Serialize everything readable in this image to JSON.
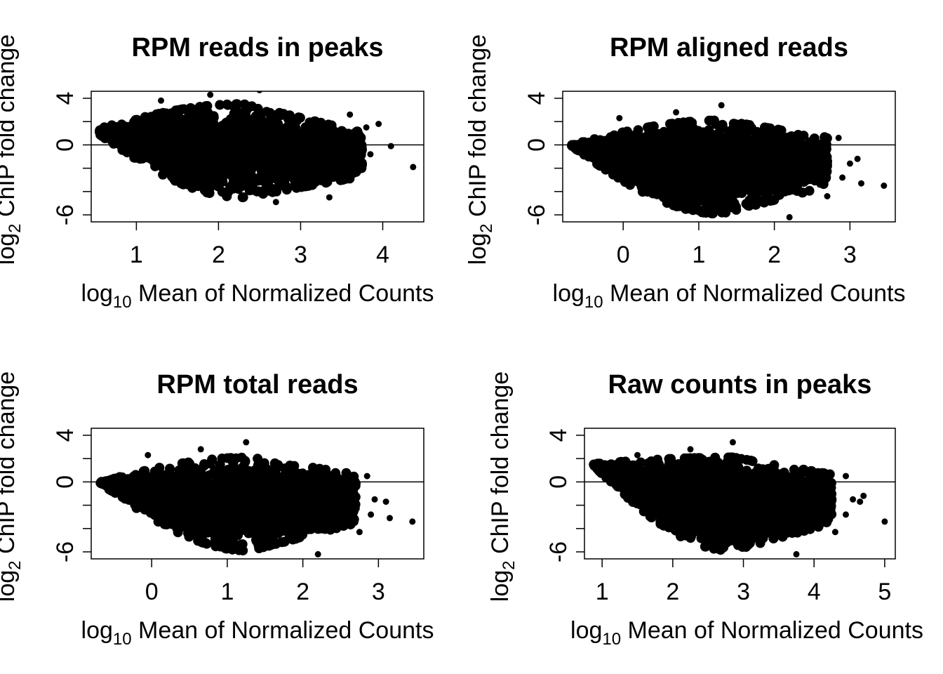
{
  "chart_data": [
    {
      "type": "scatter",
      "title": "RPM reads in peaks",
      "xlabel": {
        "prefix": "log",
        "sub": "10",
        "text": " Mean of Normalized Counts"
      },
      "ylabel": {
        "prefix": "log",
        "sub": "2",
        "text": " ChIP fold change"
      },
      "xlim": [
        0.45,
        4.5
      ],
      "ylim": [
        -6.6,
        4.6
      ],
      "xticks": [
        1,
        2,
        3,
        4
      ],
      "yticks": [
        -6,
        -4,
        -2,
        0,
        2,
        4
      ],
      "ytick_labels": [
        "-6",
        "",
        "",
        "0",
        "",
        "4"
      ],
      "hline": 0,
      "cloud": {
        "x0": 0.55,
        "x1": 3.75,
        "peak_x": 2.3,
        "upper_start": 1.4,
        "lower_start": 0.9,
        "upper_peak": 3.5,
        "lower_peak": -4.5
      },
      "outliers": [
        [
          1.9,
          4.3
        ],
        [
          2.5,
          4.7
        ],
        [
          3.8,
          1.5
        ],
        [
          3.95,
          1.8
        ],
        [
          4.1,
          -0.1
        ],
        [
          4.37,
          -1.9
        ],
        [
          3.7,
          -1.2
        ],
        [
          3.5,
          -2.6
        ],
        [
          3.85,
          -0.8
        ],
        [
          3.35,
          -4.5
        ],
        [
          2.7,
          -4.9
        ],
        [
          1.3,
          3.8
        ],
        [
          3.6,
          2.6
        ]
      ]
    },
    {
      "type": "scatter",
      "title": "RPM aligned reads",
      "xlabel": {
        "prefix": "log",
        "sub": "10",
        "text": " Mean of Normalized Counts"
      },
      "ylabel": {
        "prefix": "log",
        "sub": "2",
        "text": " ChIP fold change"
      },
      "xlim": [
        -0.8,
        3.6
      ],
      "ylim": [
        -6.6,
        4.6
      ],
      "xticks": [
        0,
        1,
        2,
        3
      ],
      "yticks": [
        -6,
        -4,
        -2,
        0,
        2,
        4
      ],
      "ytick_labels": [
        "-6",
        "",
        "",
        "0",
        "",
        "4"
      ],
      "hline": 0,
      "cloud": {
        "x0": -0.68,
        "x1": 2.7,
        "peak_x": 1.3,
        "upper_start": 0.0,
        "lower_start": -0.1,
        "upper_peak": 2.1,
        "lower_peak": -5.9
      },
      "outliers": [
        [
          1.3,
          3.4
        ],
        [
          0.7,
          2.8
        ],
        [
          2.85,
          0.6
        ],
        [
          3.0,
          -1.6
        ],
        [
          3.1,
          -1.2
        ],
        [
          3.45,
          -3.5
        ],
        [
          2.9,
          -2.8
        ],
        [
          2.2,
          -6.2
        ],
        [
          2.6,
          -3.4
        ],
        [
          -0.05,
          2.3
        ],
        [
          2.7,
          -4.4
        ],
        [
          3.15,
          -3.3
        ]
      ]
    },
    {
      "type": "scatter",
      "title": "RPM total reads",
      "xlabel": {
        "prefix": "log",
        "sub": "10",
        "text": " Mean of Normalized Counts"
      },
      "ylabel": {
        "prefix": "log",
        "sub": "2",
        "text": " ChIP fold change"
      },
      "xlim": [
        -0.8,
        3.6
      ],
      "ylim": [
        -6.6,
        4.6
      ],
      "xticks": [
        0,
        1,
        2,
        3
      ],
      "yticks": [
        -6,
        -4,
        -2,
        0,
        2,
        4
      ],
      "ytick_labels": [
        "-6",
        "",
        "",
        "0",
        "",
        "4"
      ],
      "hline": 0,
      "cloud": {
        "x0": -0.68,
        "x1": 2.7,
        "peak_x": 1.3,
        "upper_start": 0.0,
        "lower_start": -0.1,
        "upper_peak": 2.1,
        "lower_peak": -5.9
      },
      "outliers": [
        [
          1.25,
          3.4
        ],
        [
          0.65,
          2.8
        ],
        [
          2.85,
          0.5
        ],
        [
          2.95,
          -1.5
        ],
        [
          3.1,
          -1.7
        ],
        [
          3.45,
          -3.4
        ],
        [
          2.9,
          -2.8
        ],
        [
          2.2,
          -6.2
        ],
        [
          2.6,
          -3.3
        ],
        [
          -0.05,
          2.3
        ],
        [
          2.75,
          -4.3
        ],
        [
          3.15,
          -3.1
        ]
      ]
    },
    {
      "type": "scatter",
      "title": "Raw counts in peaks",
      "xlabel": {
        "prefix": "log",
        "sub": "10",
        "text": " Mean of Normalized Counts"
      },
      "ylabel": {
        "prefix": "log",
        "sub": "2",
        "text": " ChIP fold change"
      },
      "xlim": [
        0.75,
        5.15
      ],
      "ylim": [
        -6.6,
        4.6
      ],
      "xticks": [
        1,
        2,
        3,
        4,
        5
      ],
      "yticks": [
        -6,
        -4,
        -2,
        0,
        2,
        4
      ],
      "ytick_labels": [
        "-6",
        "",
        "",
        "0",
        "",
        "4"
      ],
      "hline": 0,
      "cloud": {
        "x0": 0.87,
        "x1": 4.25,
        "peak_x": 2.85,
        "upper_start": 1.55,
        "lower_start": 1.45,
        "upper_peak": 2.1,
        "lower_peak": -5.9
      },
      "outliers": [
        [
          2.85,
          3.4
        ],
        [
          2.25,
          2.8
        ],
        [
          4.45,
          0.5
        ],
        [
          4.55,
          -1.5
        ],
        [
          4.65,
          -1.7
        ],
        [
          5.0,
          -3.4
        ],
        [
          4.45,
          -2.8
        ],
        [
          3.75,
          -6.2
        ],
        [
          4.15,
          -3.3
        ],
        [
          1.5,
          2.3
        ],
        [
          4.3,
          -4.3
        ],
        [
          4.7,
          -1.2
        ]
      ]
    }
  ]
}
